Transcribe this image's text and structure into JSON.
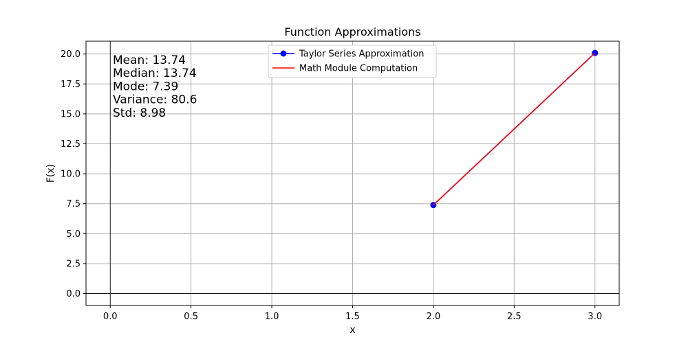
{
  "chart_data": {
    "type": "line",
    "title": "Function Approximations",
    "xlabel": "x",
    "ylabel": "F(x)",
    "xlim": [
      -0.15,
      3.15
    ],
    "ylim": [
      -1.0,
      21.07
    ],
    "xticks": [
      0.0,
      0.5,
      1.0,
      1.5,
      2.0,
      2.5,
      3.0
    ],
    "xtick_labels": [
      "0.0",
      "0.5",
      "1.0",
      "1.5",
      "2.0",
      "2.5",
      "3.0"
    ],
    "yticks": [
      0.0,
      2.5,
      5.0,
      7.5,
      10.0,
      12.5,
      15.0,
      17.5,
      20.0
    ],
    "ytick_labels": [
      "0.0",
      "2.5",
      "5.0",
      "7.5",
      "10.0",
      "12.5",
      "15.0",
      "17.5",
      "20.0"
    ],
    "grid": true,
    "reference_lines": {
      "horizontal_y": 0,
      "vertical_x": 0
    },
    "legend_position": "top-center",
    "series": [
      {
        "name": "Taylor Series Approximation",
        "x": [
          2,
          3
        ],
        "y": [
          7.39,
          20.09
        ],
        "color": "#0000ff",
        "marker": "circle"
      },
      {
        "name": "Math Module Computation",
        "x": [
          2,
          3
        ],
        "y": [
          7.389,
          20.086
        ],
        "color": "#ff0000",
        "marker": "none"
      }
    ],
    "annotation_lines": [
      "Mean: 13.74",
      "Median: 13.74",
      "Mode: 7.39",
      "Variance: 80.6",
      "Std: 8.98"
    ]
  }
}
